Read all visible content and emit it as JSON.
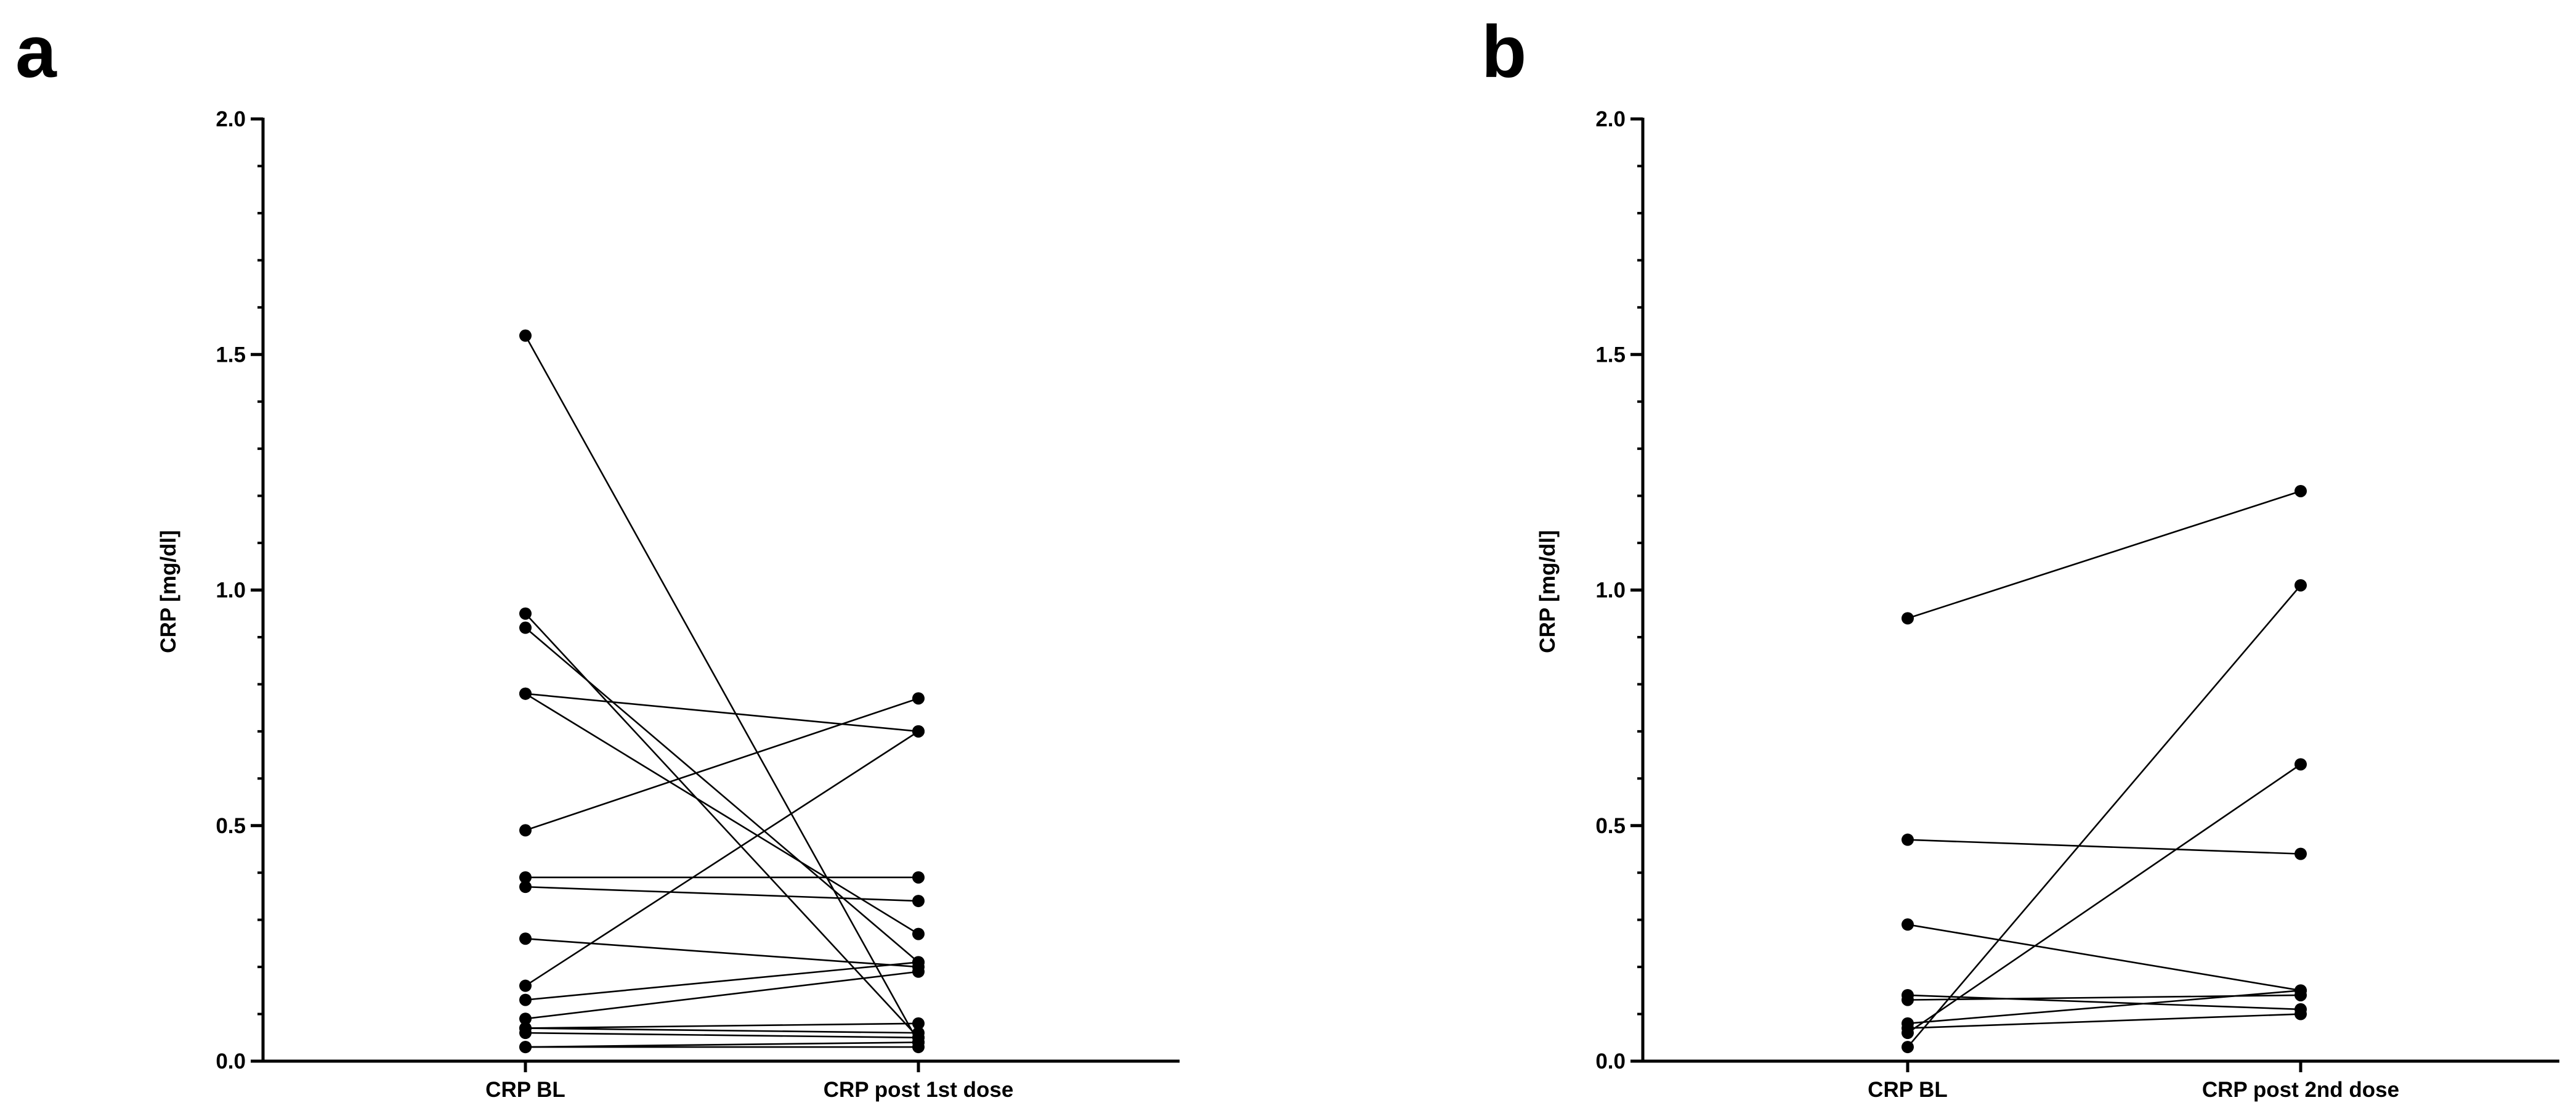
{
  "chart_data": [
    {
      "type": "line",
      "panel": "a",
      "title": "",
      "ylabel": "CRP [mg/dl]",
      "xlabel": "",
      "categories": [
        "CRP BL",
        "CRP post 1st dose"
      ],
      "ylim": [
        0,
        2.0
      ],
      "yticks": [
        "0.0",
        "0.5",
        "1.0",
        "1.5",
        "2.0"
      ],
      "grid": false,
      "pairs": [
        [
          1.54,
          0.04
        ],
        [
          0.95,
          0.05
        ],
        [
          0.92,
          0.21
        ],
        [
          0.78,
          0.7
        ],
        [
          0.78,
          0.27
        ],
        [
          0.49,
          0.77
        ],
        [
          0.39,
          0.39
        ],
        [
          0.37,
          0.34
        ],
        [
          0.26,
          0.2
        ],
        [
          0.16,
          0.7
        ],
        [
          0.13,
          0.21
        ],
        [
          0.09,
          0.19
        ],
        [
          0.07,
          0.08
        ],
        [
          0.07,
          0.06
        ],
        [
          0.06,
          0.05
        ],
        [
          0.03,
          0.04
        ],
        [
          0.03,
          0.03
        ]
      ]
    },
    {
      "type": "line",
      "panel": "b",
      "title": "",
      "ylabel": "CRP [mg/dl]",
      "xlabel": "",
      "categories": [
        "CRP BL",
        "CRP post 2nd dose"
      ],
      "ylim": [
        0,
        2.0
      ],
      "yticks": [
        "0.0",
        "0.5",
        "1.0",
        "1.5",
        "2.0"
      ],
      "grid": false,
      "pairs": [
        [
          0.94,
          1.21
        ],
        [
          0.47,
          0.44
        ],
        [
          0.29,
          0.15
        ],
        [
          0.14,
          0.11
        ],
        [
          0.13,
          0.14
        ],
        [
          0.08,
          0.15
        ],
        [
          0.07,
          0.1
        ],
        [
          0.06,
          0.63
        ],
        [
          0.03,
          1.01
        ]
      ]
    }
  ]
}
